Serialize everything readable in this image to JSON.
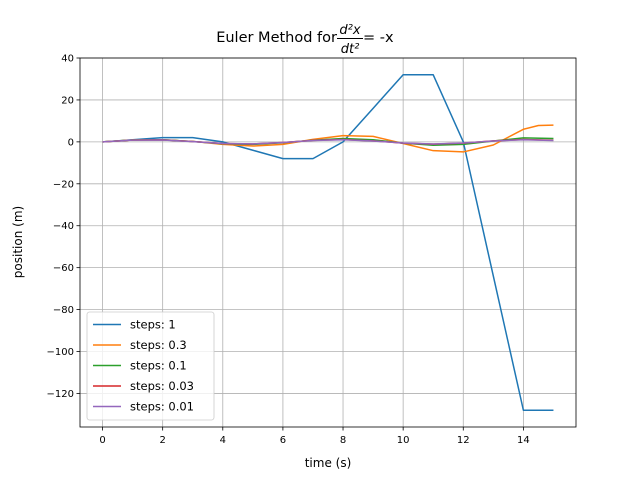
{
  "chart_data": {
    "type": "line",
    "title_prefix": "Euler Method for ",
    "title_eq_num": "d²x",
    "title_eq_den": "dt²",
    "title_suffix": " = -x",
    "xlabel": "time (s)",
    "ylabel": "position (m)",
    "xlim": [
      -0.75,
      15.75
    ],
    "ylim": [
      -136,
      40
    ],
    "xticks": [
      0,
      2,
      4,
      6,
      8,
      10,
      12,
      14
    ],
    "yticks": [
      40,
      20,
      0,
      -20,
      -40,
      -60,
      -80,
      -100,
      -120
    ],
    "grid": true,
    "legend_position": "lower-left",
    "series": [
      {
        "name": "steps: 1",
        "color": "#1f77b4",
        "x": [
          0,
          1,
          2,
          3,
          4,
          5,
          6,
          7,
          8,
          9,
          10,
          11,
          12,
          13,
          14,
          15
        ],
        "y": [
          0,
          1,
          2,
          2,
          0,
          -4,
          -8,
          -8,
          0,
          16,
          32,
          32,
          0,
          -64,
          -128,
          -128
        ]
      },
      {
        "name": "steps: 0.3",
        "color": "#ff7f0e",
        "x": [
          0,
          1,
          2,
          3,
          4,
          5,
          6,
          7,
          8,
          9,
          10,
          11,
          12,
          13,
          14,
          14.5,
          15
        ],
        "y": [
          0,
          0.9,
          1.0,
          0.2,
          -1.2,
          -2.0,
          -1.2,
          1.2,
          3.0,
          2.6,
          -0.8,
          -4.2,
          -4.8,
          -1.5,
          6.0,
          7.8,
          8.0
        ]
      },
      {
        "name": "steps: 0.1",
        "color": "#2ca02c",
        "x": [
          0,
          1,
          2,
          3,
          4,
          5,
          6,
          7,
          8,
          9,
          10,
          11,
          12,
          13,
          14,
          15
        ],
        "y": [
          0,
          0.9,
          1.0,
          0.2,
          -0.9,
          -1.2,
          -0.4,
          0.8,
          1.6,
          1.0,
          -0.6,
          -1.6,
          -1.2,
          0.4,
          1.9,
          1.6
        ]
      },
      {
        "name": "steps: 0.03",
        "color": "#d62728",
        "x": [
          0,
          1,
          2,
          3,
          4,
          5,
          6,
          7,
          8,
          9,
          10,
          11,
          12,
          13,
          14,
          15
        ],
        "y": [
          0,
          0.85,
          0.95,
          0.15,
          -0.8,
          -1.0,
          -0.3,
          0.7,
          1.1,
          0.5,
          -0.6,
          -1.1,
          -0.6,
          0.5,
          1.1,
          0.8
        ]
      },
      {
        "name": "steps: 0.01",
        "color": "#9467bd",
        "x": [
          0,
          1,
          2,
          3,
          4,
          5,
          6,
          7,
          8,
          9,
          10,
          11,
          12,
          13,
          14,
          15
        ],
        "y": [
          0,
          0.84,
          0.91,
          0.14,
          -0.76,
          -0.96,
          -0.28,
          0.66,
          0.99,
          0.41,
          -0.54,
          -1.0,
          -0.54,
          0.42,
          0.99,
          0.65
        ]
      }
    ]
  }
}
